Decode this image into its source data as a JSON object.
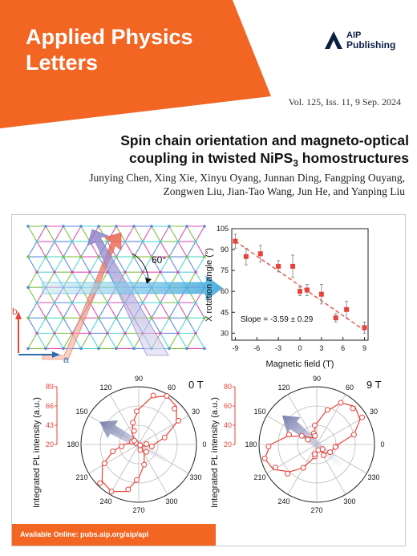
{
  "journal": {
    "title_line1": "Applied Physics",
    "title_line2": "Letters",
    "publisher_line1": "AIP",
    "publisher_line2": "Publishing",
    "brand_color": "#f26522",
    "publisher_color": "#0b1f44"
  },
  "issue": {
    "text": "Vol. 125, Iss. 11, 9 Sep. 2024"
  },
  "article": {
    "title_line1": "Spin chain orientation and magneto-optical",
    "title_line2_pre": "coupling in twisted NiPS",
    "title_line2_sub": "3",
    "title_line2_post": " homostructures",
    "authors_line1": "Junying Chen, Xing Xie, Xinyu Oyang, Junnan Ding, Fangping Ouyang,",
    "authors_line2": "Zongwen Liu, Jian-Tao Wang, Jun He, and Yanping Liu"
  },
  "footer": {
    "online": "Available Online: pubs.aip.org/aip/apl"
  },
  "figure": {
    "lattice": {
      "angle_label": "60°",
      "axis_b": "b",
      "axis_a": "a"
    }
  },
  "chart_data": [
    {
      "type": "scatter",
      "xlabel": "Magnetic field (T)",
      "ylabel": "X rotation angle (°)",
      "xticks": [
        "-9",
        "-6",
        "-3",
        "0",
        "3",
        "6",
        "9"
      ],
      "yticks": [
        "105",
        "90",
        "75",
        "60",
        "45",
        "30"
      ],
      "xlim": [
        -9.5,
        9.5
      ],
      "ylim": [
        25,
        105
      ],
      "annotation": "Slope = -3.59 ± 0.29",
      "fit_line": {
        "x": [
          -9,
          9
        ],
        "y": [
          96,
          32
        ]
      },
      "x": [
        -9,
        -7.5,
        -5.5,
        -3,
        -1,
        0,
        1,
        3,
        5,
        6.5,
        9
      ],
      "y": [
        96,
        85,
        87,
        78,
        78,
        60,
        61,
        58,
        41,
        47,
        34
      ],
      "err": [
        5,
        6,
        6,
        4,
        8,
        3,
        4,
        7,
        3,
        6,
        4
      ],
      "marker_color": "#e8433a"
    },
    {
      "type": "polar-scatter",
      "label": "0 T",
      "ylabel": "Integrated PL intensity (a.u.)",
      "rticks": [
        "20",
        "43",
        "66",
        "89"
      ],
      "angle_labels": [
        "0",
        "30",
        "60",
        "90",
        "120",
        "150",
        "180",
        "210",
        "240",
        "270",
        "300",
        "330"
      ],
      "angles": [
        0,
        15,
        30,
        45,
        60,
        75,
        90,
        105,
        120,
        135,
        150,
        165,
        180,
        195,
        210,
        225,
        240,
        255,
        270,
        285,
        300,
        315,
        330,
        345
      ],
      "values": [
        38,
        52,
        72,
        84,
        87,
        78,
        62,
        47,
        36,
        28,
        24,
        28,
        38,
        52,
        70,
        82,
        85,
        78,
        60,
        45,
        33,
        26,
        22,
        27
      ],
      "color": "#e8433a"
    },
    {
      "type": "polar-scatter",
      "label": "9 T",
      "ylabel": "Integrated PL intensity (a.u.)",
      "rticks": [
        "20",
        "40",
        "60",
        "80"
      ],
      "angle_labels": [
        "0",
        "30",
        "60",
        "90",
        "120",
        "150",
        "180",
        "210",
        "240",
        "270",
        "300",
        "330"
      ],
      "angles": [
        0,
        15,
        30,
        45,
        60,
        75,
        90,
        105,
        120,
        135,
        150,
        165,
        180,
        195,
        210,
        225,
        240,
        255,
        270,
        285,
        300,
        315,
        330,
        345
      ],
      "values": [
        42,
        60,
        72,
        76,
        70,
        55,
        42,
        32,
        28,
        30,
        38,
        52,
        68,
        76,
        72,
        60,
        48,
        35,
        28,
        26,
        28,
        33,
        36,
        38
      ],
      "color": "#e8433a"
    }
  ]
}
